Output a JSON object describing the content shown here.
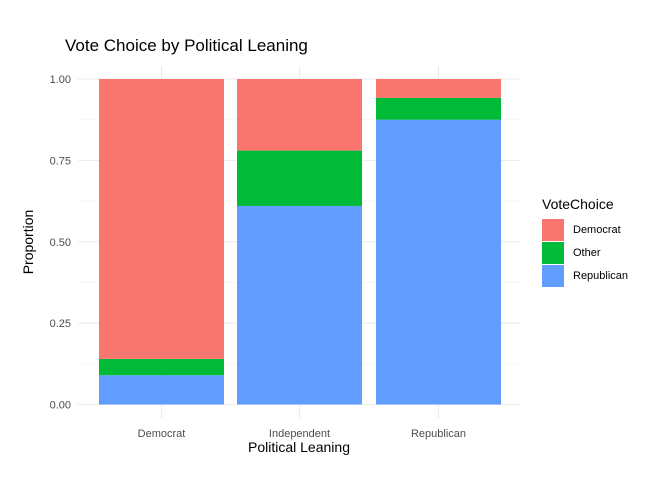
{
  "chart_data": {
    "type": "bar",
    "stacked": "fill",
    "title": "Vote Choice by Political Leaning",
    "xlabel": "Political Leaning",
    "ylabel": "Proportion",
    "ylim": [
      0,
      1
    ],
    "yticks": [
      "0.00",
      "0.25",
      "0.50",
      "0.75",
      "1.00"
    ],
    "categories": [
      "Democrat",
      "Independent",
      "Republican"
    ],
    "legend_title": "VoteChoice",
    "legend_position": "right",
    "grid": true,
    "series": [
      {
        "name": "Democrat",
        "color": "#F8766D",
        "values": [
          0.86,
          0.22,
          0.058
        ]
      },
      {
        "name": "Other",
        "color": "#00BA38",
        "values": [
          0.05,
          0.17,
          0.067
        ]
      },
      {
        "name": "Republican",
        "color": "#619CFF",
        "values": [
          0.09,
          0.61,
          0.875
        ]
      }
    ]
  }
}
